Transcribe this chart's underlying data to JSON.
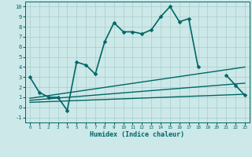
{
  "xlabel": "Humidex (Indice chaleur)",
  "xlim": [
    -0.5,
    23.5
  ],
  "ylim": [
    -1.5,
    10.5
  ],
  "bg_color": "#cce8e8",
  "grid_color": "#aacccc",
  "line_color": "#006666",
  "main_line": {
    "x": [
      0,
      1,
      2,
      3,
      4,
      5,
      6,
      7,
      8,
      9,
      10,
      11,
      12,
      13,
      14,
      15,
      16,
      17,
      18,
      19,
      20,
      21,
      22,
      23
    ],
    "y": [
      3,
      1.5,
      1,
      1,
      -0.3,
      4.5,
      4.2,
      3.3,
      6.5,
      8.4,
      7.5,
      7.5,
      7.3,
      7.7,
      9.0,
      10.0,
      8.5,
      8.8,
      4.0,
      null,
      null,
      null,
      2.2,
      null
    ]
  },
  "extra_line": {
    "x": [
      21,
      23
    ],
    "y": [
      3.2,
      1.2
    ]
  },
  "diag_lines": [
    {
      "x0": 0,
      "y0": 0.9,
      "x1": 23,
      "y1": 4.0
    },
    {
      "x0": 0,
      "y0": 0.7,
      "x1": 23,
      "y1": 2.4
    },
    {
      "x0": 0,
      "y0": 0.5,
      "x1": 23,
      "y1": 1.3
    }
  ],
  "xticks": [
    0,
    1,
    2,
    3,
    4,
    5,
    6,
    7,
    8,
    9,
    10,
    11,
    12,
    13,
    14,
    15,
    16,
    17,
    18,
    19,
    20,
    21,
    22,
    23
  ],
  "yticks": [
    -1,
    0,
    1,
    2,
    3,
    4,
    5,
    6,
    7,
    8,
    9,
    10
  ]
}
